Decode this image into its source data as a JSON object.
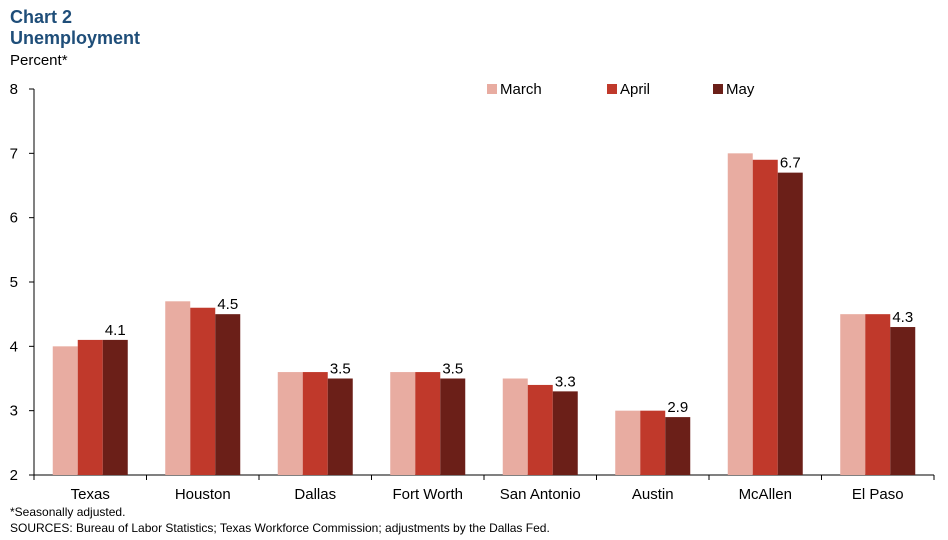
{
  "header": {
    "chart_number": "Chart 2",
    "title": "Unemployment",
    "unit_label": "Percent*"
  },
  "footer": {
    "note": "*Seasonally adjusted.",
    "sources": "SOURCES: Bureau of Labor Statistics; Texas Workforce Commission; adjustments by the Dallas Fed."
  },
  "chart_data": {
    "type": "bar",
    "categories": [
      "Texas",
      "Houston",
      "Dallas",
      "Fort Worth",
      "San Antonio",
      "Austin",
      "McAllen",
      "El Paso"
    ],
    "series": [
      {
        "name": "March",
        "color": "#e8aca1",
        "values": [
          4.0,
          4.7,
          3.6,
          3.6,
          3.5,
          3.0,
          7.0,
          4.5
        ]
      },
      {
        "name": "April",
        "color": "#c0392b",
        "values": [
          4.1,
          4.6,
          3.6,
          3.6,
          3.4,
          3.0,
          6.9,
          4.5
        ]
      },
      {
        "name": "May",
        "color": "#6b1f18",
        "values": [
          4.1,
          4.5,
          3.5,
          3.5,
          3.3,
          2.9,
          6.7,
          4.3
        ]
      }
    ],
    "data_labels": [
      "4.1",
      "4.5",
      "3.5",
      "3.5",
      "3.3",
      "2.9",
      "6.7",
      "4.3"
    ],
    "yticks": [
      "2",
      "3",
      "4",
      "5",
      "6",
      "7",
      "8"
    ],
    "ylim": [
      2,
      8
    ],
    "legend_position": "top-right",
    "grid": false
  }
}
